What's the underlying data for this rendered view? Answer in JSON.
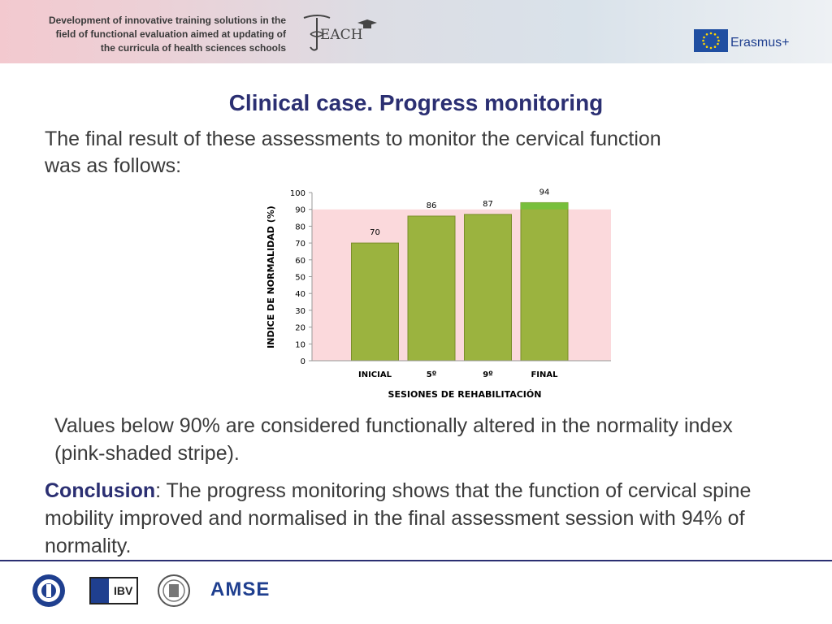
{
  "header": {
    "project_text": [
      "Development of innovative training solutions in the",
      "field of functional evaluation aimed at updating of",
      "the curricula of health sciences schools"
    ],
    "logo_text": "EACH",
    "program": "Erasmus+"
  },
  "slide": {
    "title": "Clinical case. Progress monitoring",
    "intro": "The final result of these assessments to monitor the cervical function was as follows:",
    "note": "Values below 90% are considered functionally altered in the normality index (pink-shaded stripe).",
    "conclusion_label": "Conclusion",
    "conclusion_text": ": The progress monitoring shows that the function of cervical spine mobility improved and normalised in the final assessment session with 94% of normality."
  },
  "chart_data": {
    "type": "bar",
    "categories": [
      "INICIAL",
      "5º",
      "9º",
      "FINAL"
    ],
    "values": [
      70,
      86,
      87,
      94
    ],
    "xlabel": "SESIONES DE REHABILITACIÓN",
    "ylabel": "INDICE DE NORMALIDAD (%)",
    "ylim": [
      0,
      100
    ],
    "yticks": [
      0,
      10,
      20,
      30,
      40,
      50,
      60,
      70,
      80,
      90,
      100
    ],
    "shaded_band": [
      0,
      90
    ],
    "colors": {
      "bar": "#9bb33f",
      "bar_border": "#7a8e2a",
      "final_cap": "#78bf3c",
      "band": "#fbd9dc"
    }
  },
  "footer": {
    "logos": [
      "university-seal-logo",
      "ibv-logo",
      "university-crest-logo",
      "amse-logo"
    ],
    "ibv_text": "IBV",
    "amse_text": "AMSE"
  }
}
